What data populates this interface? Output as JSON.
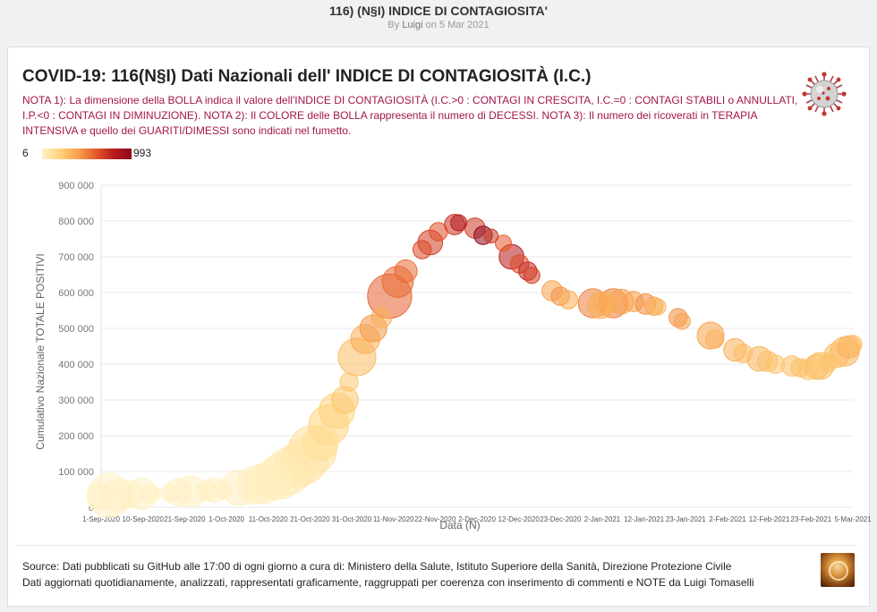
{
  "page": {
    "title": "116) (N§I) INDICE DI CONTAGIOSITA'",
    "byline_prefix": "By",
    "author": "Luigi",
    "byline_date": "on 5 Mar 2021"
  },
  "card": {
    "title": "COVID-19: 116(N§I) Dati Nazionali dell' INDICE DI CONTAGIOSITÀ (I.C.)",
    "notes": "NOTA 1): La dimensione della BOLLA indica il valore dell'INDICE DI CONTAGIOSITÀ (I.C.>0 : CONTAGI IN CRESCITA, I.C.=0 : CONTAGI STABILI o ANNULLATI, I.P.<0 : CONTAGI IN DIMINUZIONE). NOTA 2): Il COLORE delle BOLLA rappresenta il numero di DECESSI. NOTA 3): Il numero dei ricoverati in TERAPIA INTENSIVA e quello dei GUARITI/DIMESSI sono indicati nel fumetto.",
    "icon": "coronavirus-icon"
  },
  "legend": {
    "min": "6",
    "max": "993"
  },
  "chart_data": {
    "type": "scatter",
    "subtype": "bubble",
    "xlabel": "Data (N)",
    "ylabel": "Cumulativo Nazionale TOTALE POSITIVI",
    "ylim": [
      0,
      900000
    ],
    "y_ticks": [
      "0",
      "100 000",
      "200 000",
      "300 000",
      "400 000",
      "500 000",
      "600 000",
      "700 000",
      "800 000",
      "900 000"
    ],
    "x_ticks": [
      "1-Sep-2020",
      "10-Sep-2020",
      "21-Sep-2020",
      "1-Oct-2020",
      "11-Oct-2020",
      "21-Oct-2020",
      "31-Oct-2020",
      "11-Nov-2020",
      "22-Nov-2020",
      "2-Dec-2020",
      "12-Dec-2020",
      "23-Dec-2020",
      "2-Jan-2021",
      "12-Jan-2021",
      "23-Jan-2021",
      "2-Feb-2021",
      "12-Feb-2021",
      "23-Feb-2021",
      "5-Mar-2021"
    ],
    "xlim": [
      "2020-09-01",
      "2021-03-05"
    ],
    "color_scale": {
      "min": 6,
      "max": 993,
      "colors": [
        "#fff2c6",
        "#ffd27a",
        "#f7a24c",
        "#e65a2d",
        "#b81c1c",
        "#8e0a1c"
      ]
    },
    "size_encoding": "INDICE DI CONTAGIOSITÀ",
    "color_encoding": "DECESSI",
    "points": [
      {
        "x": "2020-09-01",
        "y": 30000,
        "size": 0.5,
        "color": 10
      },
      {
        "x": "2020-09-03",
        "y": 33000,
        "size": 0.9,
        "color": 12
      },
      {
        "x": "2020-09-05",
        "y": 34000,
        "size": 0.6,
        "color": 10
      },
      {
        "x": "2020-09-08",
        "y": 36000,
        "size": 0.5,
        "color": 10
      },
      {
        "x": "2020-09-11",
        "y": 37000,
        "size": 0.6,
        "color": 15
      },
      {
        "x": "2020-09-13",
        "y": 38000,
        "size": 0.3,
        "color": 12
      },
      {
        "x": "2020-09-14",
        "y": 38000,
        "size": 0.2,
        "color": 6
      },
      {
        "x": "2020-09-18",
        "y": 41000,
        "size": 0.3,
        "color": 15
      },
      {
        "x": "2020-09-20",
        "y": 42000,
        "size": 0.5,
        "color": 15
      },
      {
        "x": "2020-09-23",
        "y": 44000,
        "size": 0.6,
        "color": 18
      },
      {
        "x": "2020-09-27",
        "y": 46000,
        "size": 0.35,
        "color": 18
      },
      {
        "x": "2020-09-29",
        "y": 48000,
        "size": 0.45,
        "color": 20
      },
      {
        "x": "2020-10-01",
        "y": 49000,
        "size": 0.3,
        "color": 20
      },
      {
        "x": "2020-10-05",
        "y": 55000,
        "size": 0.7,
        "color": 25
      },
      {
        "x": "2020-10-09",
        "y": 62000,
        "size": 0.75,
        "color": 25
      },
      {
        "x": "2020-10-11",
        "y": 66000,
        "size": 0.8,
        "color": 25
      },
      {
        "x": "2020-10-13",
        "y": 75000,
        "size": 0.8,
        "color": 30
      },
      {
        "x": "2020-10-15",
        "y": 85000,
        "size": 0.9,
        "color": 40
      },
      {
        "x": "2020-10-17",
        "y": 100000,
        "size": 0.95,
        "color": 45
      },
      {
        "x": "2020-10-19",
        "y": 115000,
        "size": 0.9,
        "color": 70
      },
      {
        "x": "2020-10-21",
        "y": 130000,
        "size": 0.95,
        "color": 80
      },
      {
        "x": "2020-10-23",
        "y": 160000,
        "size": 1.0,
        "color": 120
      },
      {
        "x": "2020-10-25",
        "y": 180000,
        "size": 0.7,
        "color": 130
      },
      {
        "x": "2020-10-27",
        "y": 230000,
        "size": 0.8,
        "color": 200
      },
      {
        "x": "2020-10-29",
        "y": 270000,
        "size": 0.7,
        "color": 200
      },
      {
        "x": "2020-10-31",
        "y": 300000,
        "size": 0.5,
        "color": 250
      },
      {
        "x": "2020-11-01",
        "y": 350000,
        "size": 0.3,
        "color": 250
      },
      {
        "x": "2020-11-03",
        "y": 420000,
        "size": 0.75,
        "color": 300
      },
      {
        "x": "2020-11-05",
        "y": 470000,
        "size": 0.55,
        "color": 350
      },
      {
        "x": "2020-11-07",
        "y": 500000,
        "size": 0.5,
        "color": 430
      },
      {
        "x": "2020-11-09",
        "y": 530000,
        "size": 0.35,
        "color": 350
      },
      {
        "x": "2020-11-11",
        "y": 590000,
        "size": 0.9,
        "color": 580
      },
      {
        "x": "2020-11-13",
        "y": 630000,
        "size": 0.6,
        "color": 550
      },
      {
        "x": "2020-11-15",
        "y": 660000,
        "size": 0.4,
        "color": 550
      },
      {
        "x": "2020-11-19",
        "y": 720000,
        "size": 0.3,
        "color": 650
      },
      {
        "x": "2020-11-21",
        "y": 740000,
        "size": 0.45,
        "color": 690
      },
      {
        "x": "2020-11-23",
        "y": 770000,
        "size": 0.3,
        "color": 630
      },
      {
        "x": "2020-11-27",
        "y": 790000,
        "size": 0.35,
        "color": 730
      },
      {
        "x": "2020-11-28",
        "y": 795000,
        "size": 0.25,
        "color": 800
      },
      {
        "x": "2020-12-02",
        "y": 780000,
        "size": 0.35,
        "color": 700
      },
      {
        "x": "2020-12-04",
        "y": 760000,
        "size": 0.3,
        "color": 993
      },
      {
        "x": "2020-12-06",
        "y": 758000,
        "size": 0.2,
        "color": 700
      },
      {
        "x": "2020-12-09",
        "y": 738000,
        "size": 0.25,
        "color": 600
      },
      {
        "x": "2020-12-11",
        "y": 700000,
        "size": 0.45,
        "color": 800
      },
      {
        "x": "2020-12-13",
        "y": 680000,
        "size": 0.3,
        "color": 650
      },
      {
        "x": "2020-12-15",
        "y": 660000,
        "size": 0.3,
        "color": 750
      },
      {
        "x": "2020-12-16",
        "y": 648000,
        "size": 0.25,
        "color": 680
      },
      {
        "x": "2020-12-21",
        "y": 605000,
        "size": 0.35,
        "color": 400
      },
      {
        "x": "2020-12-23",
        "y": 590000,
        "size": 0.3,
        "color": 450
      },
      {
        "x": "2020-12-25",
        "y": 580000,
        "size": 0.3,
        "color": 350
      },
      {
        "x": "2020-12-31",
        "y": 570000,
        "size": 0.55,
        "color": 500
      },
      {
        "x": "2021-01-02",
        "y": 565000,
        "size": 0.5,
        "color": 350
      },
      {
        "x": "2021-01-03",
        "y": 568000,
        "size": 0.4,
        "color": 350
      },
      {
        "x": "2021-01-05",
        "y": 570000,
        "size": 0.55,
        "color": 500
      },
      {
        "x": "2021-01-07",
        "y": 575000,
        "size": 0.45,
        "color": 400
      },
      {
        "x": "2021-01-10",
        "y": 575000,
        "size": 0.35,
        "color": 400
      },
      {
        "x": "2021-01-13",
        "y": 568000,
        "size": 0.35,
        "color": 450
      },
      {
        "x": "2021-01-15",
        "y": 562000,
        "size": 0.3,
        "color": 380
      },
      {
        "x": "2021-01-16",
        "y": 560000,
        "size": 0.25,
        "color": 320
      },
      {
        "x": "2021-01-21",
        "y": 530000,
        "size": 0.3,
        "color": 450
      },
      {
        "x": "2021-01-22",
        "y": 520000,
        "size": 0.25,
        "color": 400
      },
      {
        "x": "2021-01-29",
        "y": 480000,
        "size": 0.5,
        "color": 400
      },
      {
        "x": "2021-01-30",
        "y": 470000,
        "size": 0.3,
        "color": 330
      },
      {
        "x": "2021-02-04",
        "y": 440000,
        "size": 0.4,
        "color": 350
      },
      {
        "x": "2021-02-06",
        "y": 430000,
        "size": 0.3,
        "color": 300
      },
      {
        "x": "2021-02-10",
        "y": 415000,
        "size": 0.45,
        "color": 330
      },
      {
        "x": "2021-02-12",
        "y": 408000,
        "size": 0.35,
        "color": 280
      },
      {
        "x": "2021-02-14",
        "y": 400000,
        "size": 0.3,
        "color": 260
      },
      {
        "x": "2021-02-18",
        "y": 395000,
        "size": 0.35,
        "color": 280
      },
      {
        "x": "2021-02-20",
        "y": 390000,
        "size": 0.3,
        "color": 280
      },
      {
        "x": "2021-02-22",
        "y": 385000,
        "size": 0.35,
        "color": 250
      },
      {
        "x": "2021-02-24",
        "y": 392000,
        "size": 0.45,
        "color": 280
      },
      {
        "x": "2021-02-25",
        "y": 395000,
        "size": 0.5,
        "color": 300
      },
      {
        "x": "2021-02-27",
        "y": 405000,
        "size": 0.3,
        "color": 260
      },
      {
        "x": "2021-03-01",
        "y": 425000,
        "size": 0.45,
        "color": 300
      },
      {
        "x": "2021-03-03",
        "y": 435000,
        "size": 0.55,
        "color": 330
      },
      {
        "x": "2021-03-04",
        "y": 448000,
        "size": 0.4,
        "color": 340
      },
      {
        "x": "2021-03-05",
        "y": 455000,
        "size": 0.3,
        "color": 300
      }
    ]
  },
  "footer": {
    "line1": "Source: Dati pubblicati su GitHub alle 17:00 di ogni giorno a cura di: Ministero della Salute, Istituto Superiore della Sanità, Direzione Protezione Civile",
    "line2": "Dati aggiornati quotidianamente, analizzati, rappresentati graficamente, raggruppati per coerenza con inserimento di commenti e NOTE da Luigi Tomaselli",
    "logo_icon": "author-logo-icon"
  }
}
